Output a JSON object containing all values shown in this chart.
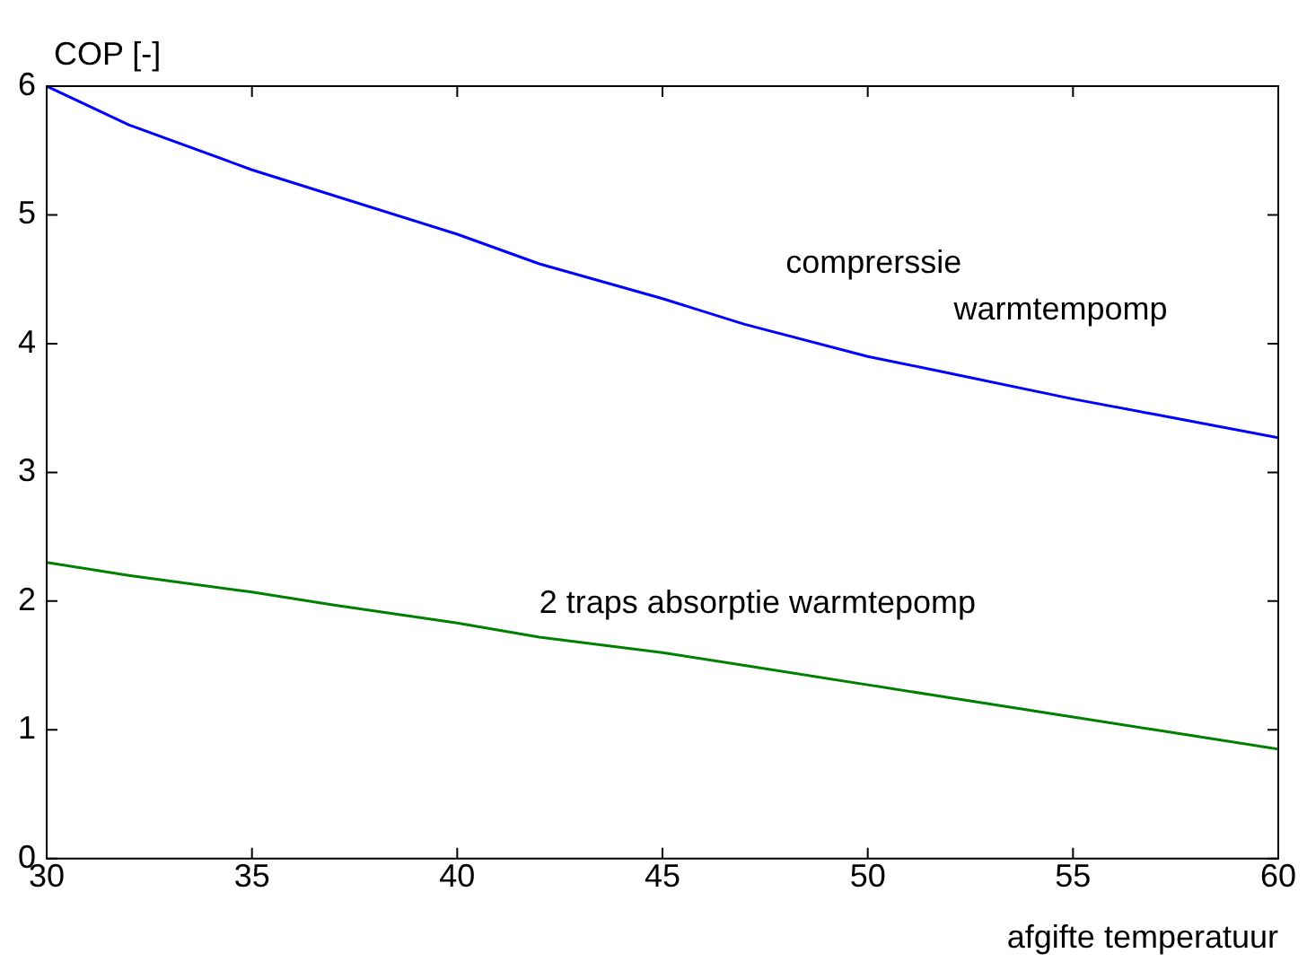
{
  "chart_data": {
    "type": "line",
    "xlabel": "afgifte temperatuur",
    "ylabel": "COP [-]",
    "x": [
      30,
      32,
      35,
      37,
      40,
      42,
      45,
      47,
      50,
      52,
      55,
      57,
      60
    ],
    "series": [
      {
        "name": "comprerssie warmtempomp",
        "color": "#0000ff",
        "values": [
          6.0,
          5.7,
          5.35,
          5.15,
          4.85,
          4.62,
          4.35,
          4.15,
          3.9,
          3.77,
          3.57,
          3.45,
          3.27
        ]
      },
      {
        "name": "2 traps absorptie warmtepomp",
        "color": "#008000",
        "values": [
          2.3,
          2.2,
          2.07,
          1.97,
          1.83,
          1.72,
          1.6,
          1.5,
          1.35,
          1.25,
          1.1,
          1.0,
          0.85
        ]
      }
    ],
    "xlim": [
      30,
      60
    ],
    "xticks": [
      30,
      35,
      40,
      45,
      50,
      55,
      60
    ],
    "ylim": [
      0,
      6
    ],
    "yticks": [
      0,
      1,
      2,
      3,
      4,
      5,
      6
    ],
    "legend": false,
    "marker": "none",
    "line_style": "solid"
  }
}
